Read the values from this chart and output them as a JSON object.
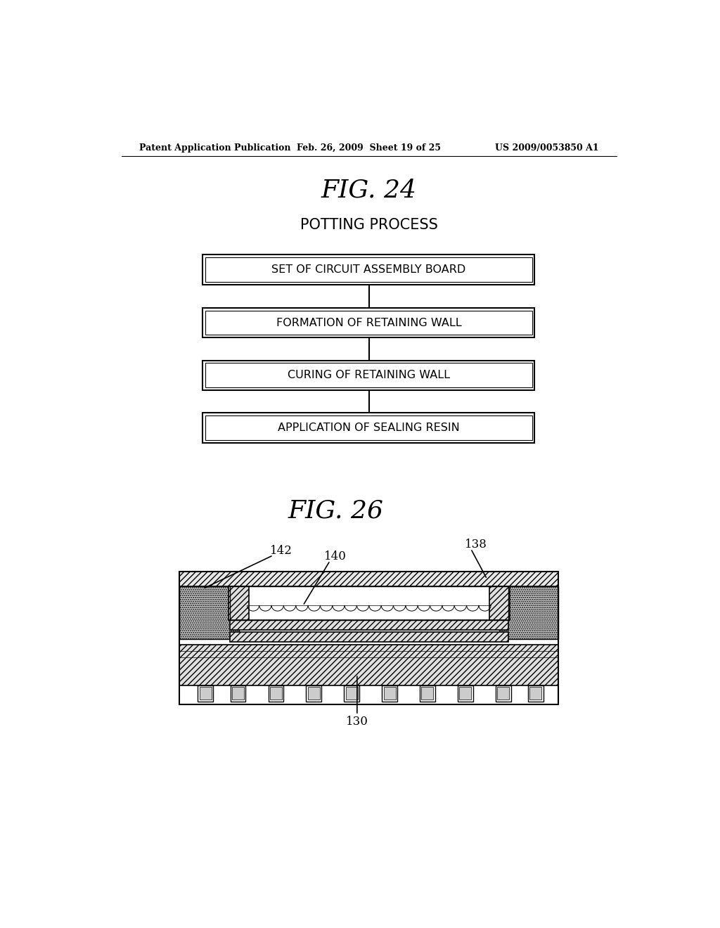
{
  "bg_color": "#ffffff",
  "header_left": "Patent Application Publication",
  "header_center": "Feb. 26, 2009  Sheet 19 of 25",
  "header_right": "US 2009/0053850 A1",
  "fig24_title": "FIG. 24",
  "fig24_subtitle": "POTTING PROCESS",
  "flowchart_boxes": [
    "SET OF CIRCUIT ASSEMBLY BOARD",
    "FORMATION OF RETAINING WALL",
    "CURING OF RETAINING WALL",
    "APPLICATION OF SEALING RESIN"
  ],
  "fig26_title": "FIG. 26",
  "line_color": "#000000",
  "text_color": "#000000",
  "box_fill": "#ffffff"
}
